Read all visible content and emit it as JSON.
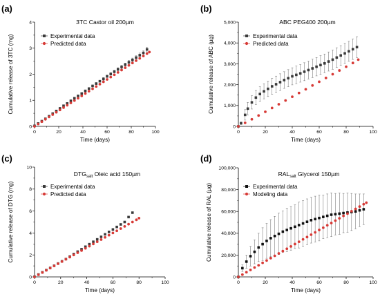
{
  "figure": {
    "panels": [
      {
        "label": "(a)",
        "title_main": "3TC Castor oil 200µm",
        "title_sub": "",
        "title_tail": "",
        "xlabel": "Time (days)",
        "ylabel": "Cumulative release of 3TC (mg)",
        "xticks": [
          "0",
          "20",
          "40",
          "60",
          "80",
          "100"
        ],
        "yticks": [
          "0",
          "1",
          "2",
          "3",
          "4"
        ]
      },
      {
        "label": "(b)",
        "title_main": "ABC PEG400 200µm",
        "title_sub": "",
        "title_tail": "",
        "xlabel": "Time (days)",
        "ylabel": "Cumulative release of ABC (µg)",
        "xticks": [
          "0",
          "20",
          "40",
          "60",
          "80",
          "100"
        ],
        "yticks": [
          "0",
          "1,000",
          "2,000",
          "3,000",
          "4,000",
          "5,000"
        ]
      },
      {
        "label": "(c)",
        "title_main": "DTG",
        "title_sub": "salt",
        "title_tail": " Oleic acid 150µm",
        "xlabel": "Time (days)",
        "ylabel": "Cumulative release of DTG (mg)",
        "xticks": [
          "0",
          "20",
          "40",
          "60",
          "80",
          "100"
        ],
        "yticks": [
          "0",
          "2",
          "4",
          "6",
          "8",
          "10"
        ]
      },
      {
        "label": "(d)",
        "title_main": "RAL",
        "title_sub": "salt",
        "title_tail": " Glycerol 150µm",
        "xlabel": "Time (days)",
        "ylabel": "Cumulative release of RAL (µg)",
        "xticks": [
          "0",
          "20",
          "40",
          "60",
          "80",
          "100"
        ],
        "yticks": [
          "0",
          "20,000",
          "40,000",
          "60,000",
          "80,000",
          "100,000"
        ]
      }
    ]
  },
  "chart_data": [
    {
      "type": "scatter",
      "title": "3TC Castor oil 200µm",
      "xlabel": "Time (days)",
      "ylabel": "Cumulative release of 3TC (mg)",
      "xlim": [
        0,
        100
      ],
      "ylim": [
        0,
        4
      ],
      "legend": "top-left",
      "series": [
        {
          "name": "Experimental data",
          "marker": "square",
          "color": "#3a3a3a",
          "x": [
            0,
            3,
            6,
            9,
            12,
            15,
            18,
            21,
            24,
            27,
            30,
            33,
            36,
            39,
            42,
            45,
            48,
            51,
            54,
            57,
            60,
            63,
            66,
            69,
            72,
            75,
            78,
            81,
            84,
            87,
            90,
            93
          ],
          "y": [
            0.02,
            0.11,
            0.2,
            0.29,
            0.39,
            0.49,
            0.59,
            0.69,
            0.79,
            0.88,
            0.98,
            1.08,
            1.17,
            1.26,
            1.36,
            1.45,
            1.55,
            1.64,
            1.73,
            1.82,
            1.92,
            2.01,
            2.1,
            2.19,
            2.28,
            2.37,
            2.46,
            2.55,
            2.64,
            2.73,
            2.82,
            2.95
          ],
          "error": [
            0,
            0.01,
            0.01,
            0.01,
            0.02,
            0.02,
            0.02,
            0.02,
            0.03,
            0.03,
            0.03,
            0.03,
            0.03,
            0.03,
            0.04,
            0.04,
            0.04,
            0.04,
            0.04,
            0.05,
            0.05,
            0.05,
            0.05,
            0.06,
            0.06,
            0.06,
            0.07,
            0.07,
            0.07,
            0.08,
            0.08,
            0.09
          ]
        },
        {
          "name": "Predicted data",
          "marker": "circle",
          "color": "#d73a36",
          "x": [
            0,
            3,
            6,
            9,
            12,
            15,
            18,
            21,
            24,
            27,
            30,
            33,
            36,
            39,
            42,
            45,
            48,
            51,
            54,
            57,
            60,
            63,
            66,
            69,
            72,
            75,
            78,
            81,
            84,
            87,
            90,
            93,
            95
          ],
          "y": [
            0,
            0.09,
            0.18,
            0.27,
            0.36,
            0.45,
            0.54,
            0.63,
            0.72,
            0.81,
            0.9,
            0.99,
            1.08,
            1.17,
            1.26,
            1.35,
            1.44,
            1.53,
            1.62,
            1.71,
            1.8,
            1.89,
            1.98,
            2.07,
            2.16,
            2.25,
            2.34,
            2.43,
            2.52,
            2.61,
            2.7,
            2.79,
            2.85
          ],
          "error": []
        }
      ]
    },
    {
      "type": "scatter",
      "title": "ABC PEG400 200µm",
      "xlabel": "Time (days)",
      "ylabel": "Cumulative release of ABC (µg)",
      "xlim": [
        0,
        100
      ],
      "ylim": [
        0,
        5000
      ],
      "legend": "top-left",
      "series": [
        {
          "name": "Experimental data",
          "marker": "square",
          "color": "#3a3a3a",
          "x": [
            0,
            2,
            5,
            7,
            10,
            13,
            16,
            19,
            22,
            25,
            28,
            31,
            34,
            37,
            40,
            43,
            46,
            49,
            52,
            55,
            58,
            61,
            64,
            67,
            70,
            73,
            76,
            79,
            82,
            85,
            88
          ],
          "y": [
            0,
            150,
            550,
            850,
            1150,
            1380,
            1550,
            1680,
            1800,
            1920,
            2020,
            2120,
            2220,
            2310,
            2400,
            2470,
            2540,
            2620,
            2700,
            2780,
            2860,
            2940,
            3020,
            3110,
            3200,
            3300,
            3400,
            3500,
            3600,
            3700,
            3800
          ],
          "error": [
            0,
            60,
            250,
            300,
            320,
            340,
            350,
            360,
            370,
            380,
            390,
            400,
            400,
            410,
            410,
            420,
            420,
            430,
            430,
            440,
            440,
            450,
            450,
            460,
            460,
            470,
            470,
            480,
            480,
            490,
            500
          ]
        },
        {
          "name": "Predicted data",
          "marker": "circle",
          "color": "#d73a36",
          "x": [
            0,
            5,
            10,
            15,
            20,
            25,
            30,
            35,
            40,
            45,
            50,
            55,
            60,
            65,
            70,
            75,
            80,
            85,
            89
          ],
          "y": [
            0,
            170,
            340,
            520,
            700,
            880,
            1060,
            1240,
            1420,
            1600,
            1780,
            1960,
            2140,
            2320,
            2500,
            2680,
            2860,
            3040,
            3200
          ],
          "error": []
        }
      ]
    },
    {
      "type": "scatter",
      "title": "DTGsalt Oleic acid 150µm",
      "xlabel": "Time (days)",
      "ylabel": "Cumulative release of DTG (mg)",
      "xlim": [
        0,
        100
      ],
      "ylim": [
        0,
        10
      ],
      "legend": "top-left",
      "series": [
        {
          "name": "Experimental data",
          "marker": "square",
          "color": "#3a3a3a",
          "x": [
            0,
            3,
            6,
            9,
            12,
            15,
            18,
            21,
            24,
            27,
            30,
            33,
            36,
            39,
            42,
            45,
            48,
            51,
            54,
            57,
            60,
            63,
            66,
            69,
            72,
            75
          ],
          "y": [
            0.02,
            0.22,
            0.42,
            0.62,
            0.82,
            1.02,
            1.22,
            1.42,
            1.62,
            1.85,
            2.08,
            2.3,
            2.52,
            2.75,
            2.98,
            3.2,
            3.42,
            3.65,
            3.88,
            4.1,
            4.32,
            4.55,
            4.78,
            5.0,
            5.45,
            5.85
          ],
          "error": []
        },
        {
          "name": "Predicted data",
          "marker": "circle",
          "color": "#d73a36",
          "x": [
            0,
            3,
            6,
            9,
            12,
            15,
            18,
            21,
            24,
            27,
            30,
            33,
            36,
            39,
            42,
            45,
            48,
            51,
            54,
            57,
            60,
            63,
            66,
            69,
            72,
            75,
            78,
            80
          ],
          "y": [
            0,
            0.2,
            0.4,
            0.6,
            0.8,
            1.0,
            1.2,
            1.4,
            1.6,
            1.8,
            2.0,
            2.2,
            2.4,
            2.6,
            2.8,
            3.0,
            3.2,
            3.4,
            3.6,
            3.8,
            4.0,
            4.2,
            4.4,
            4.6,
            4.8,
            5.0,
            5.2,
            5.35
          ],
          "error": []
        }
      ]
    },
    {
      "type": "scatter",
      "title": "RALsalt Glycerol 150µm",
      "xlabel": "Time (days)",
      "ylabel": "Cumulative release of RAL (µg)",
      "xlim": [
        0,
        100
      ],
      "ylim": [
        0,
        100000
      ],
      "legend": "top-left",
      "series": [
        {
          "name": "Experimental data",
          "marker": "square",
          "color": "#111111",
          "x": [
            0,
            3,
            6,
            9,
            12,
            15,
            18,
            21,
            24,
            27,
            30,
            33,
            36,
            39,
            42,
            45,
            48,
            51,
            54,
            57,
            60,
            63,
            66,
            69,
            72,
            75,
            78,
            81,
            84,
            87,
            90,
            93
          ],
          "y": [
            0,
            8000,
            14000,
            19000,
            23000,
            27000,
            30000,
            33000,
            35500,
            37500,
            39500,
            41500,
            43000,
            44500,
            46000,
            47500,
            49000,
            50500,
            52000,
            53000,
            54000,
            55000,
            56000,
            57000,
            57500,
            58000,
            58500,
            59000,
            59500,
            60000,
            61000,
            62000
          ],
          "error": [
            0,
            3000,
            6000,
            9000,
            11000,
            13000,
            15000,
            16000,
            17000,
            18000,
            19000,
            19000,
            20000,
            20000,
            20000,
            21000,
            21000,
            21000,
            21000,
            21000,
            21000,
            20000,
            20000,
            20000,
            19000,
            19000,
            18000,
            18000,
            17000,
            16000,
            15000,
            14000
          ]
        },
        {
          "name": "Modeling data",
          "marker": "circle",
          "color": "#d73a36",
          "x": [
            0,
            3,
            6,
            9,
            12,
            15,
            18,
            21,
            24,
            27,
            30,
            33,
            36,
            39,
            42,
            45,
            48,
            51,
            54,
            57,
            60,
            63,
            66,
            69,
            72,
            75,
            78,
            81,
            84,
            87,
            90,
            93,
            95
          ],
          "y": [
            0,
            2100,
            4300,
            6400,
            8600,
            10700,
            12900,
            15000,
            17200,
            19300,
            21500,
            23600,
            25800,
            27900,
            30100,
            32200,
            34400,
            36500,
            38700,
            40800,
            43000,
            45100,
            47300,
            49400,
            51600,
            53700,
            55900,
            58000,
            60200,
            62300,
            64500,
            66600,
            68000
          ],
          "error": []
        }
      ]
    }
  ]
}
